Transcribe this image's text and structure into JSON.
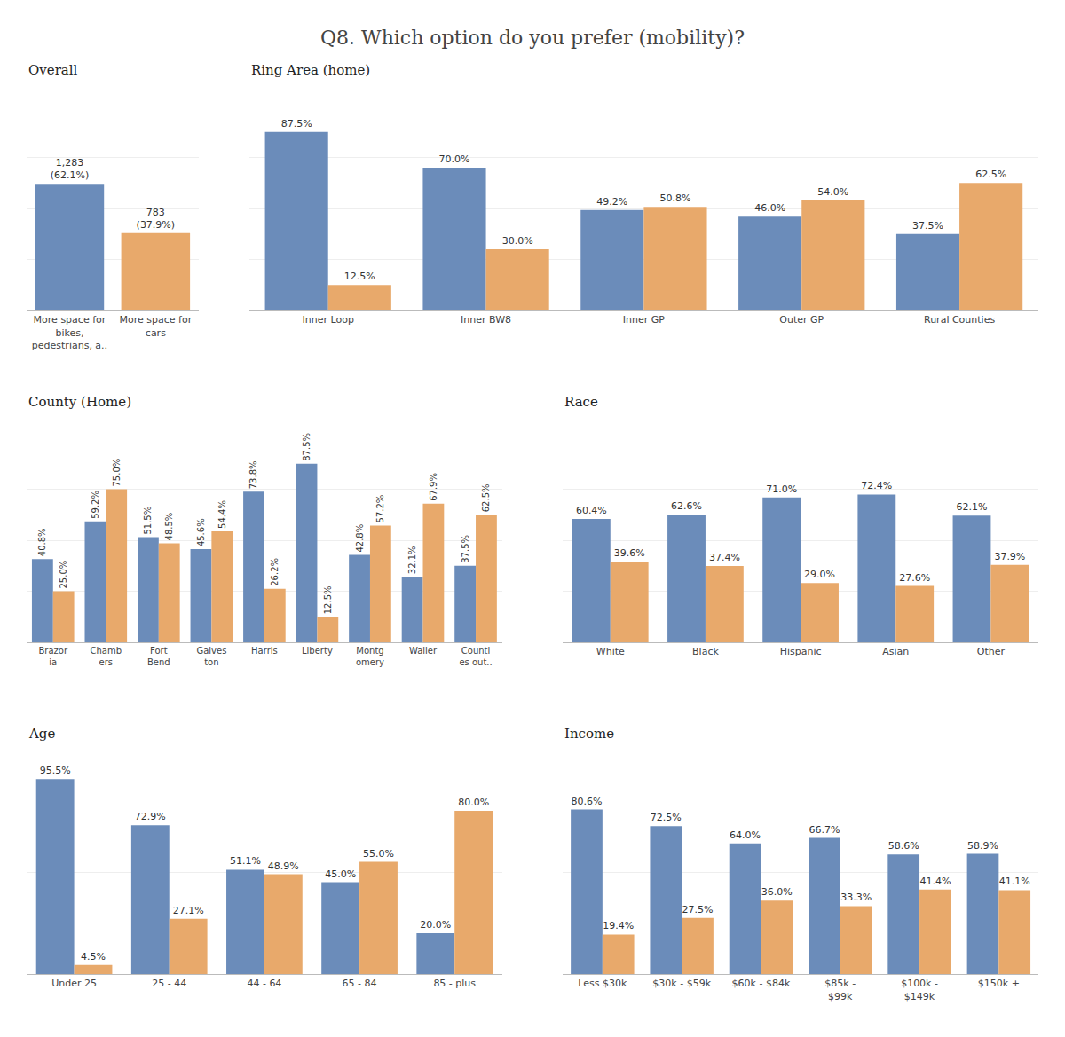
{
  "title": "Q8. Which option do you prefer (mobility)?",
  "chart_data": [
    {
      "type": "bar",
      "title": "Overall",
      "categories": [
        "More space for\nbikes,\npedestrians, a..",
        "More space for\ncars"
      ],
      "values": [
        62.1,
        37.9
      ],
      "value_labels": [
        "1,283\n(62.1%)",
        "783\n(37.9%)"
      ],
      "colors": [
        "#6b8cba",
        "#e8a96b"
      ],
      "ylim": [
        0,
        100
      ],
      "yticks": [
        0,
        25,
        50,
        75,
        100
      ],
      "grid": true,
      "data_labels": true,
      "tick_labels": "x"
    },
    {
      "type": "bar",
      "title": "Ring Area (home)",
      "categories": [
        "Inner Loop",
        "Inner BW8",
        "Inner GP",
        "Outer GP",
        "Rural Counties"
      ],
      "series": [
        {
          "color": "#6b8cba",
          "values": [
            87.5,
            70.0,
            49.2,
            46.0,
            37.5
          ],
          "value_labels": [
            "87.5%",
            "70.0%",
            "49.2%",
            "46.0%",
            "37.5%"
          ]
        },
        {
          "color": "#e8a96b",
          "values": [
            12.5,
            30.0,
            50.8,
            54.0,
            62.5
          ],
          "value_labels": [
            "12.5%",
            "30.0%",
            "50.8%",
            "54.0%",
            "62.5%"
          ]
        }
      ],
      "ylim": [
        0,
        100
      ],
      "yticks": [
        0,
        25,
        50,
        75,
        100
      ],
      "grid": true,
      "data_labels": true,
      "tick_labels": "x"
    },
    {
      "type": "bar",
      "title": "County (Home)",
      "categories": [
        "Brazor\nia",
        "Chamb\ners",
        "Fort\nBend",
        "Galves\nton",
        "Harris",
        "Liberty",
        "Montg\nomery",
        "Waller",
        "Counti\nes out.."
      ],
      "series": [
        {
          "color": "#6b8cba",
          "values": [
            40.8,
            59.2,
            51.5,
            45.6,
            73.8,
            87.5,
            42.8,
            32.1,
            37.5
          ],
          "value_labels": [
            "40.8%",
            "59.2%",
            "51.5%",
            "45.6%",
            "73.8%",
            "87.5%",
            "42.8%",
            "32.1%",
            "37.5%"
          ]
        },
        {
          "color": "#e8a96b",
          "values": [
            25.0,
            75.0,
            48.5,
            54.4,
            26.2,
            12.5,
            57.2,
            67.9,
            62.5
          ],
          "value_labels": [
            "25.0%",
            "75.0%",
            "48.5%",
            "54.4%",
            "26.2%",
            "12.5%",
            "57.2%",
            "67.9%",
            "62.5%"
          ]
        }
      ],
      "ylim": [
        0,
        100
      ],
      "yticks": [
        0,
        25,
        50,
        75,
        100
      ],
      "grid": true,
      "data_labels": true,
      "tick_labels": "x"
    },
    {
      "type": "bar",
      "title": "Race",
      "categories": [
        "White",
        "Black",
        "Hispanic",
        "Asian",
        "Other"
      ],
      "series": [
        {
          "color": "#6b8cba",
          "values": [
            60.4,
            62.6,
            71.0,
            72.4,
            62.1
          ],
          "value_labels": [
            "60.4%",
            "62.6%",
            "71.0%",
            "72.4%",
            "62.1%"
          ]
        },
        {
          "color": "#e8a96b",
          "values": [
            39.6,
            37.4,
            29.0,
            27.6,
            37.9
          ],
          "value_labels": [
            "39.6%",
            "37.4%",
            "29.0%",
            "27.6%",
            "37.9%"
          ]
        }
      ],
      "ylim": [
        0,
        100
      ],
      "yticks": [
        0,
        25,
        50,
        75,
        100
      ],
      "grid": true,
      "data_labels": true,
      "tick_labels": "x"
    },
    {
      "type": "bar",
      "title": "Age",
      "categories": [
        "Under 25",
        "25 - 44",
        "44 - 64",
        "65 - 84",
        "85 - plus"
      ],
      "series": [
        {
          "color": "#6b8cba",
          "values": [
            95.5,
            72.9,
            51.1,
            45.0,
            20.0
          ],
          "value_labels": [
            "95.5%",
            "72.9%",
            "51.1%",
            "45.0%",
            "20.0%"
          ]
        },
        {
          "color": "#e8a96b",
          "values": [
            4.5,
            27.1,
            48.9,
            55.0,
            80.0
          ],
          "value_labels": [
            "4.5%",
            "27.1%",
            "48.9%",
            "55.0%",
            "80.0%"
          ]
        }
      ],
      "ylim": [
        0,
        100
      ],
      "yticks": [
        0,
        25,
        50,
        75,
        100
      ],
      "grid": true,
      "data_labels": true,
      "tick_labels": "x"
    },
    {
      "type": "bar",
      "title": "Income",
      "categories": [
        "Less $30k",
        "$30k - $59k",
        "$60k - $84k",
        "$85k -\n$99k",
        "$100k -\n$149k",
        "$150k +"
      ],
      "series": [
        {
          "color": "#6b8cba",
          "values": [
            80.6,
            72.5,
            64.0,
            66.7,
            58.6,
            58.9
          ],
          "value_labels": [
            "80.6%",
            "72.5%",
            "64.0%",
            "66.7%",
            "58.6%",
            "58.9%"
          ]
        },
        {
          "color": "#e8a96b",
          "values": [
            19.4,
            27.5,
            36.0,
            33.3,
            41.4,
            41.1
          ],
          "value_labels": [
            "19.4%",
            "27.5%",
            "36.0%",
            "33.3%",
            "41.4%",
            "41.1%"
          ]
        }
      ],
      "ylim": [
        0,
        100
      ],
      "yticks": [
        0,
        25,
        50,
        75,
        100
      ],
      "grid": true,
      "data_labels": true,
      "tick_labels": "x"
    }
  ]
}
